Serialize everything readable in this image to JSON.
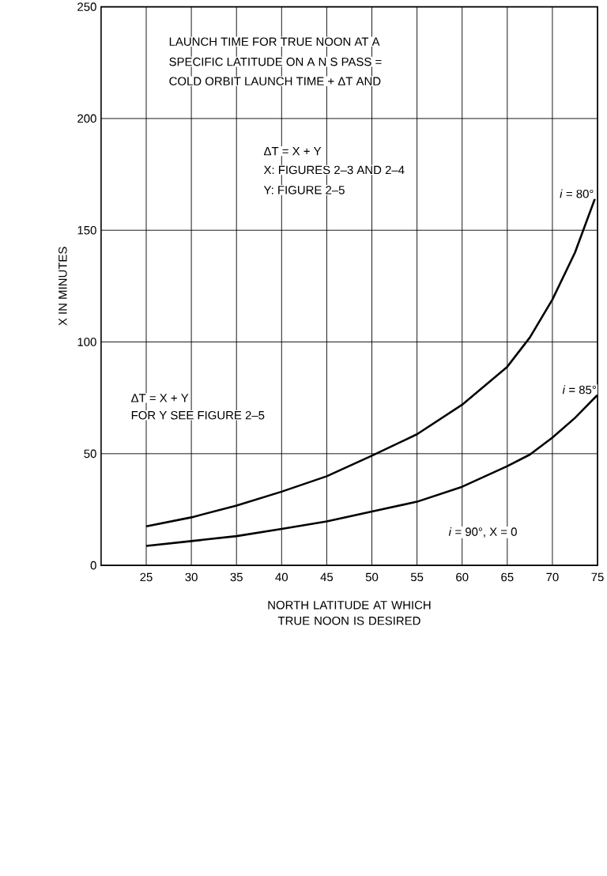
{
  "chart_data": {
    "type": "line",
    "xlabel": "NORTH LATITUDE AT WHICH TRUE NOON IS DESIRED",
    "ylabel": "X IN MINUTES",
    "xlim": [
      20,
      75
    ],
    "xticks": [
      25,
      30,
      35,
      40,
      45,
      50,
      55,
      60,
      65,
      70,
      75
    ],
    "ylim": [
      0,
      250
    ],
    "yticks": [
      0,
      50,
      100,
      150,
      200,
      250
    ],
    "grid": true,
    "legend": false,
    "marker": "none",
    "line_style": "solid",
    "x": [
      25,
      30,
      35,
      40,
      45,
      50,
      55,
      60,
      65,
      67.5,
      70,
      72.5,
      74.7
    ],
    "series": [
      {
        "name": "*i* = 80°",
        "color": "#000000",
        "values": [
          17.5,
          21.5,
          26.8,
          33,
          39.9,
          49.1,
          58.7,
          71.9,
          88.9,
          102,
          119,
          140,
          164
        ]
      },
      {
        "name": "*i* = 85°",
        "color": "#000000",
        "x": [
          25,
          30,
          35,
          40,
          45,
          50,
          55,
          60,
          65,
          67.5,
          70,
          72.5,
          75
        ],
        "values": [
          8.7,
          10.9,
          13.1,
          16.3,
          19.7,
          24.1,
          28.5,
          35.2,
          44.4,
          49.6,
          57.2,
          66,
          76.3
        ]
      }
    ],
    "annotations": [
      "LAUNCH TIME FOR TRUE NOON AT A",
      "SPECIFIC LATITUDE ON A N S PASS =",
      "COLD ORBIT LAUNCH TIME + ΔT AND",
      "ΔT = X + Y",
      "X: FIGURES 2–3 AND 2–4",
      "Y: FIGURE 2–5",
      "ΔT = X + Y",
      "FOR Y SEE FIGURE 2–5",
      "*i* = 90°, X = 0"
    ]
  }
}
